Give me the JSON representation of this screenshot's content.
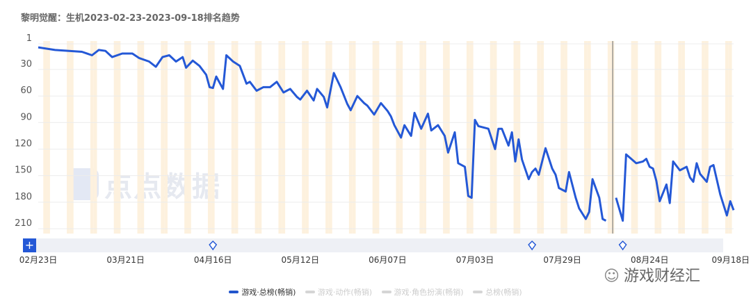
{
  "title": "黎明觉醒：生机2023-02-23-2023-09-18排名趋势",
  "watermark": "点点数据",
  "wechat_watermark": "游戏财经汇",
  "colors": {
    "line": "#2458d6",
    "weekend": "#fdf1de",
    "grid": "#ececec",
    "slider": "#eef0f5",
    "plus": "#2458d6"
  },
  "chart_data": {
    "type": "line",
    "title": "黎明觉醒：生机2023-02-23-2023-09-18排名趋势",
    "x_range": [
      "2023-02-23",
      "2023-09-18"
    ],
    "x_ticks": [
      "02月23日",
      "03月21日",
      "04月16日",
      "05月12日",
      "06月07日",
      "07月03日",
      "07月29日",
      "08月24日",
      "09月18日"
    ],
    "x_tick_dates": [
      "2023-02-23",
      "2023-03-21",
      "2023-04-16",
      "2023-05-12",
      "2023-06-07",
      "2023-07-03",
      "2023-07-29",
      "2023-08-24",
      "2023-09-18"
    ],
    "y_ticks": [
      1,
      30,
      60,
      90,
      120,
      150,
      180,
      210
    ],
    "ylim": [
      1,
      210
    ],
    "y_reversed": true,
    "grid": true,
    "weekend_shading": true,
    "legend_position": "bottom",
    "event_marker_dates": [
      "2023-04-16",
      "2023-07-20",
      "2023-08-16"
    ],
    "crosshair_date": "2023-08-13",
    "legend": [
      {
        "name": "游戏·总榜(畅销)",
        "active": true
      },
      {
        "name": "游戏·动作(畅销)",
        "active": false
      },
      {
        "name": "游戏·角色扮演(畅销)",
        "active": false
      },
      {
        "name": "总榜(畅销)",
        "active": false
      }
    ],
    "series": [
      {
        "name": "游戏·总榜(畅销)",
        "points": [
          [
            "2023-02-23",
            5
          ],
          [
            "2023-02-28",
            8
          ],
          [
            "2023-03-08",
            10
          ],
          [
            "2023-03-11",
            14
          ],
          [
            "2023-03-13",
            8
          ],
          [
            "2023-03-15",
            9
          ],
          [
            "2023-03-17",
            16
          ],
          [
            "2023-03-20",
            12
          ],
          [
            "2023-03-23",
            12
          ],
          [
            "2023-03-25",
            17
          ],
          [
            "2023-03-28",
            21
          ],
          [
            "2023-03-30",
            27
          ],
          [
            "2023-04-01",
            16
          ],
          [
            "2023-04-03",
            14
          ],
          [
            "2023-04-05",
            21
          ],
          [
            "2023-04-07",
            16
          ],
          [
            "2023-04-08",
            28
          ],
          [
            "2023-04-10",
            20
          ],
          [
            "2023-04-12",
            26
          ],
          [
            "2023-04-14",
            36
          ],
          [
            "2023-04-15",
            50
          ],
          [
            "2023-04-16",
            51
          ],
          [
            "2023-04-17",
            38
          ],
          [
            "2023-04-19",
            52
          ],
          [
            "2023-04-20",
            14
          ],
          [
            "2023-04-22",
            21
          ],
          [
            "2023-04-24",
            26
          ],
          [
            "2023-04-26",
            46
          ],
          [
            "2023-04-27",
            44
          ],
          [
            "2023-04-29",
            54
          ],
          [
            "2023-05-01",
            50
          ],
          [
            "2023-05-03",
            50
          ],
          [
            "2023-05-05",
            44
          ],
          [
            "2023-05-07",
            56
          ],
          [
            "2023-05-09",
            52
          ],
          [
            "2023-05-11",
            61
          ],
          [
            "2023-05-12",
            64
          ],
          [
            "2023-05-14",
            54
          ],
          [
            "2023-05-16",
            65
          ],
          [
            "2023-05-17",
            52
          ],
          [
            "2023-05-19",
            61
          ],
          [
            "2023-05-20",
            73
          ],
          [
            "2023-05-22",
            34
          ],
          [
            "2023-05-24",
            50
          ],
          [
            "2023-05-26",
            69
          ],
          [
            "2023-05-27",
            76
          ],
          [
            "2023-05-29",
            60
          ],
          [
            "2023-05-31",
            68
          ],
          [
            "2023-06-01",
            71
          ],
          [
            "2023-06-03",
            81
          ],
          [
            "2023-06-05",
            68
          ],
          [
            "2023-06-07",
            77
          ],
          [
            "2023-06-08",
            83
          ],
          [
            "2023-06-09",
            93
          ],
          [
            "2023-06-11",
            107
          ],
          [
            "2023-06-12",
            93
          ],
          [
            "2023-06-14",
            105
          ],
          [
            "2023-06-15",
            79
          ],
          [
            "2023-06-17",
            97
          ],
          [
            "2023-06-19",
            80
          ],
          [
            "2023-06-20",
            99
          ],
          [
            "2023-06-22",
            93
          ],
          [
            "2023-06-24",
            105
          ],
          [
            "2023-06-25",
            124
          ],
          [
            "2023-06-27",
            101
          ],
          [
            "2023-06-28",
            136
          ],
          [
            "2023-06-30",
            140
          ],
          [
            "2023-07-01",
            173
          ],
          [
            "2023-07-02",
            175
          ],
          [
            "2023-07-03",
            87
          ],
          [
            "2023-07-04",
            94
          ],
          [
            "2023-07-07",
            97
          ],
          [
            "2023-07-09",
            120
          ],
          [
            "2023-07-10",
            97
          ],
          [
            "2023-07-11",
            97
          ],
          [
            "2023-07-13",
            116
          ],
          [
            "2023-07-14",
            101
          ],
          [
            "2023-07-15",
            134
          ],
          [
            "2023-07-16",
            109
          ],
          [
            "2023-07-17",
            132
          ],
          [
            "2023-07-19",
            154
          ],
          [
            "2023-07-20",
            146
          ],
          [
            "2023-07-21",
            142
          ],
          [
            "2023-07-22",
            149
          ],
          [
            "2023-07-24",
            119
          ],
          [
            "2023-07-26",
            142
          ],
          [
            "2023-07-27",
            149
          ],
          [
            "2023-07-28",
            164
          ],
          [
            "2023-07-30",
            168
          ],
          [
            "2023-07-31",
            146
          ],
          [
            "2023-08-02",
            175
          ],
          [
            "2023-08-03",
            187
          ],
          [
            "2023-08-05",
            199
          ],
          [
            "2023-08-06",
            191
          ],
          [
            "2023-08-07",
            154
          ],
          [
            "2023-08-09",
            175
          ],
          [
            "2023-08-10",
            199
          ],
          [
            "2023-08-11",
            201
          ],
          null,
          [
            "2023-08-14",
            175
          ],
          [
            "2023-08-16",
            201
          ],
          [
            "2023-08-17",
            126
          ],
          [
            "2023-08-20",
            136
          ],
          [
            "2023-08-22",
            134
          ],
          [
            "2023-08-23",
            131
          ],
          [
            "2023-08-24",
            140
          ],
          [
            "2023-08-25",
            142
          ],
          [
            "2023-08-26",
            156
          ],
          [
            "2023-08-27",
            179
          ],
          [
            "2023-08-29",
            160
          ],
          [
            "2023-08-30",
            181
          ],
          [
            "2023-08-31",
            134
          ],
          [
            "2023-09-02",
            144
          ],
          [
            "2023-09-04",
            140
          ],
          [
            "2023-09-05",
            152
          ],
          [
            "2023-09-06",
            157
          ],
          [
            "2023-09-07",
            136
          ],
          [
            "2023-09-08",
            148
          ],
          [
            "2023-09-10",
            157
          ],
          [
            "2023-09-11",
            140
          ],
          [
            "2023-09-12",
            138
          ],
          [
            "2023-09-14",
            171
          ],
          [
            "2023-09-16",
            195
          ],
          [
            "2023-09-17",
            179
          ],
          [
            "2023-09-18",
            189
          ]
        ]
      }
    ]
  }
}
